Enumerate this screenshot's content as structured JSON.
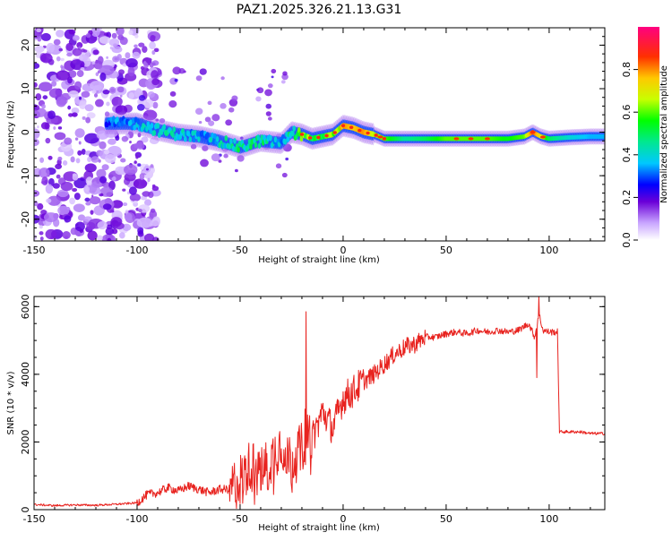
{
  "figure_title": "PAZ1.2025.326.21.13.G31",
  "colors": {
    "snr_line": "#e8231f",
    "axes": "#000000",
    "background": "#ffffff",
    "colormap": [
      "#ffffff",
      "#b57bff",
      "#7a0bd8",
      "#1414ff",
      "#00c8ff",
      "#00e08a",
      "#00f000",
      "#bfff00",
      "#ffd000",
      "#ff6a00",
      "#ff0000",
      "#ff0080"
    ]
  },
  "chart_data": [
    {
      "id": "spectrogram",
      "type": "heatmap",
      "xlabel": "Height of straight line (km)",
      "ylabel": "Frequency (Hz)",
      "xlim": [
        -150,
        127
      ],
      "ylim": [
        -25,
        24
      ],
      "xticks": [
        -150,
        -100,
        -50,
        0,
        50,
        100
      ],
      "xtick_labels": [
        "-150",
        "-100",
        "-50",
        "0",
        "50",
        "100"
      ],
      "yticks": [
        -20,
        -10,
        0,
        10,
        20
      ],
      "ytick_labels": [
        "-20",
        "-10",
        "0",
        "10",
        "20"
      ],
      "colorbar": {
        "label": "Normalized spectral amplitude",
        "range": [
          0,
          1
        ],
        "ticks": [
          0.0,
          0.2,
          0.4,
          0.6,
          0.8
        ],
        "tick_labels": [
          "0.0",
          "0.2",
          "0.4",
          "0.6",
          "0.8"
        ]
      },
      "dominant_frequency_track": {
        "height_km": [
          -115,
          -100,
          -90,
          -80,
          -70,
          -60,
          -50,
          -40,
          -30,
          -25,
          -20,
          -15,
          -10,
          -5,
          0,
          5,
          10,
          15,
          20,
          30,
          40,
          50,
          60,
          70,
          80,
          88,
          92,
          96,
          100,
          110,
          120,
          127
        ],
        "frequency_hz": [
          2,
          2,
          0.5,
          -0.5,
          -1,
          -2,
          -3.5,
          -2,
          -2.5,
          0,
          -0.5,
          -1.5,
          -1,
          -0.5,
          1.5,
          1,
          0,
          -0.5,
          -1.5,
          -1.5,
          -1.5,
          -1.5,
          -1.5,
          -1.5,
          -1.5,
          -1,
          0,
          -1,
          -1.5,
          -1.2,
          -1,
          -1
        ],
        "peak_amplitude": [
          0.3,
          0.35,
          0.4,
          0.4,
          0.35,
          0.4,
          0.45,
          0.45,
          0.35,
          0.45,
          0.65,
          0.55,
          0.5,
          0.6,
          0.8,
          0.75,
          0.8,
          0.65,
          0.6,
          0.45,
          0.5,
          0.6,
          0.6,
          0.6,
          0.55,
          0.6,
          0.85,
          0.7,
          0.5,
          0.4,
          0.35,
          0.35
        ]
      },
      "noise_region_km": [
        -150,
        -100
      ]
    },
    {
      "id": "snr",
      "type": "line",
      "xlabel": "Height of straight line (km)",
      "ylabel": "SNR (10 * v/v)",
      "xlim": [
        -150,
        127
      ],
      "ylim": [
        0,
        6300
      ],
      "xticks": [
        -150,
        -100,
        -50,
        0,
        50,
        100
      ],
      "xtick_labels": [
        "-150",
        "-100",
        "-50",
        "0",
        "50",
        "100"
      ],
      "yticks": [
        0,
        2000,
        4000,
        6000
      ],
      "ytick_labels": [
        "0",
        "2000",
        "4000",
        "6000"
      ],
      "series": [
        {
          "name": "SNR",
          "x": [
            -150,
            -140,
            -130,
            -120,
            -110,
            -100,
            -95,
            -90,
            -85,
            -80,
            -75,
            -70,
            -65,
            -60,
            -55,
            -50,
            -45,
            -40,
            -35,
            -30,
            -25,
            -20,
            -18,
            -15,
            -10,
            -5,
            0,
            5,
            10,
            15,
            20,
            25,
            30,
            35,
            40,
            45,
            50,
            55,
            60,
            65,
            70,
            75,
            80,
            85,
            90,
            93,
            95,
            97,
            100,
            104,
            105,
            110,
            115,
            120,
            127
          ],
          "y": [
            150,
            120,
            140,
            130,
            160,
            200,
            450,
            500,
            650,
            550,
            700,
            600,
            500,
            600,
            600,
            900,
            1300,
            1100,
            1500,
            2000,
            1400,
            1800,
            2400,
            2100,
            2900,
            2400,
            3300,
            3500,
            3800,
            4000,
            4300,
            4600,
            4800,
            4900,
            5100,
            5100,
            5200,
            5250,
            5200,
            5300,
            5250,
            5300,
            5250,
            5300,
            5500,
            5100,
            5800,
            5300,
            5250,
            5250,
            2300,
            2300,
            2300,
            2250,
            2250
          ],
          "spikes": [
            {
              "x": -18,
              "y": 5850
            },
            {
              "x": 95,
              "y": 6300
            },
            {
              "x": 94,
              "y": 3900
            }
          ]
        }
      ]
    }
  ]
}
